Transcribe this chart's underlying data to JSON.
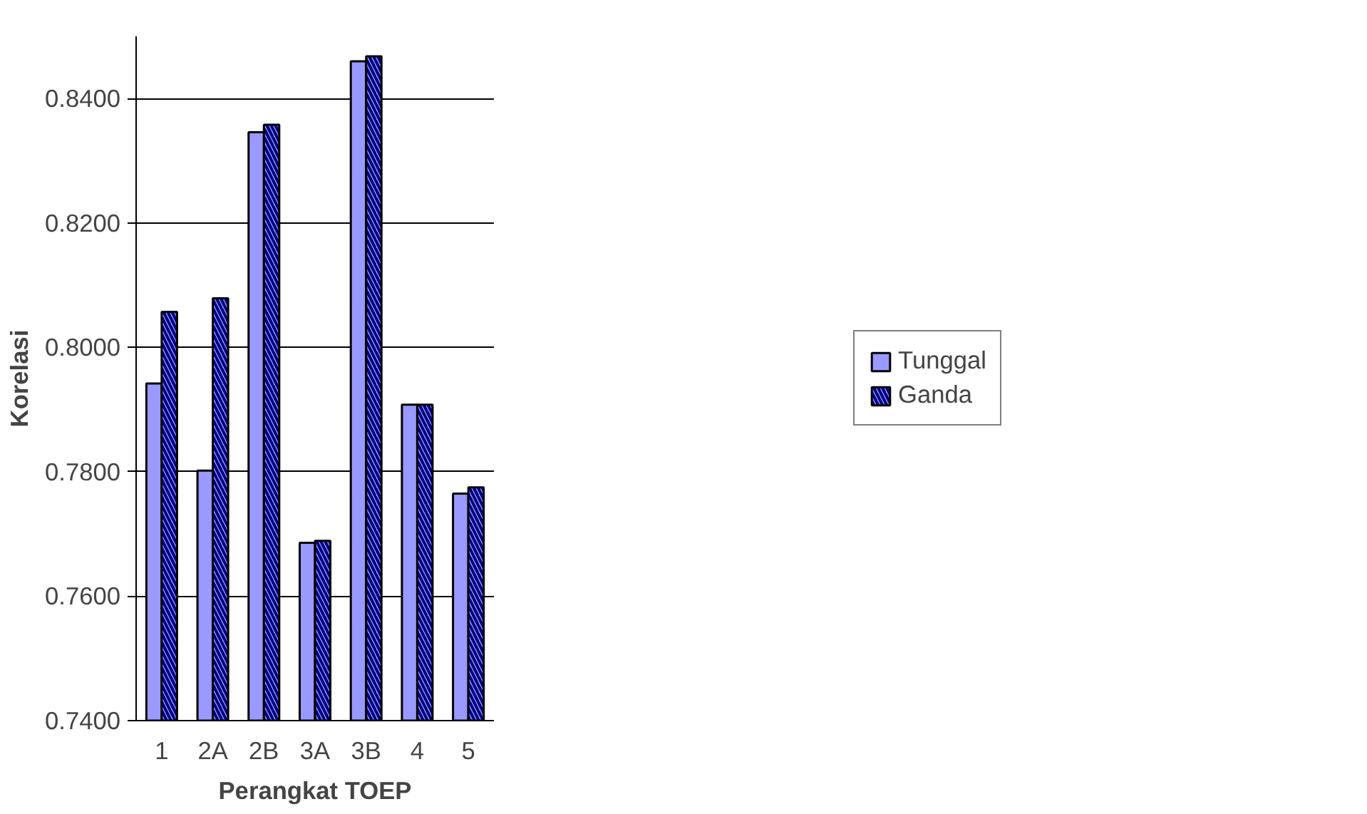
{
  "chart_data": {
    "type": "bar",
    "xlabel": "Perangkat TOEP",
    "ylabel": "Korelasi",
    "categories": [
      "1",
      "2A",
      "2B",
      "3A",
      "3B",
      "4",
      "5"
    ],
    "series": [
      {
        "name": "Tunggal",
        "color": "#9999ff",
        "values": [
          0.7942,
          0.7802,
          0.8346,
          0.7686,
          0.846,
          0.7908,
          0.7765
        ]
      },
      {
        "name": "Ganda",
        "color": "#9999ff",
        "values": [
          0.8057,
          0.8079,
          0.8358,
          0.7689,
          0.8468,
          0.7908,
          0.7775
        ]
      }
    ],
    "ylim": [
      0.74,
      0.85
    ],
    "yticks": [
      {
        "value": 0.74,
        "label": "0.7400"
      },
      {
        "value": 0.76,
        "label": "0.7600"
      },
      {
        "value": 0.78,
        "label": "0.7800"
      },
      {
        "value": 0.8,
        "label": "0.8000"
      },
      {
        "value": 0.82,
        "label": "0.8200"
      },
      {
        "value": 0.84,
        "label": "0.8400"
      }
    ],
    "grid": "y",
    "legend": "right"
  }
}
